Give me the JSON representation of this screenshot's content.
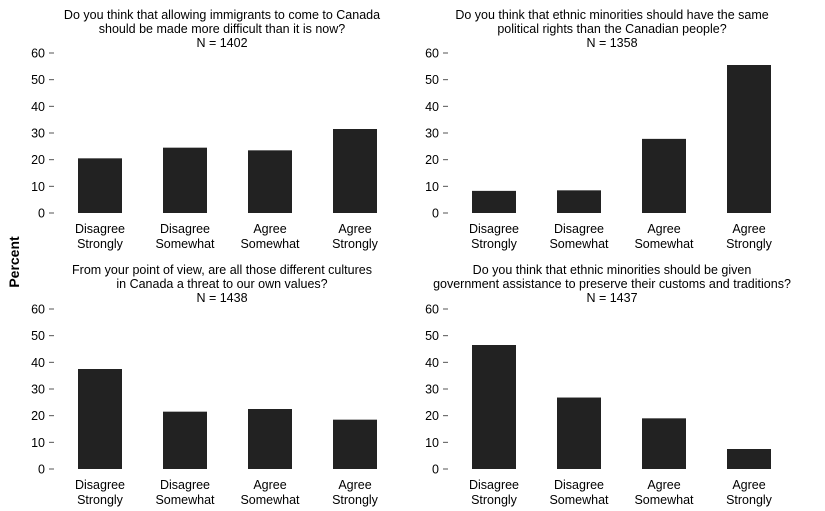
{
  "figure": {
    "ylabel": "Percent"
  },
  "chart_data": [
    {
      "type": "bar",
      "title": "Do you think that allowing immigrants to come to Canada",
      "title_line2": "should be made more difficult than it is now?",
      "subtitle": "N = 1402",
      "categories": [
        [
          "Disagree",
          "Strongly"
        ],
        [
          "Disagree",
          "Somewhat"
        ],
        [
          "Agree",
          "Somewhat"
        ],
        [
          "Agree",
          "Strongly"
        ]
      ],
      "values": [
        20.5,
        24.5,
        23.5,
        31.5
      ],
      "ylim": [
        0,
        60
      ],
      "yticks": [
        0,
        10,
        20,
        30,
        40,
        50,
        60
      ],
      "grid": false,
      "bar_color": "#222222"
    },
    {
      "type": "bar",
      "title": "Do you think that ethnic minorities should have the same",
      "title_line2": "political rights than the Canadian people?",
      "subtitle": "N = 1358",
      "categories": [
        [
          "Disagree",
          "Strongly"
        ],
        [
          "Disagree",
          "Somewhat"
        ],
        [
          "Agree",
          "Somewhat"
        ],
        [
          "Agree",
          "Strongly"
        ]
      ],
      "values": [
        8.3,
        8.5,
        27.8,
        55.5
      ],
      "ylim": [
        0,
        60
      ],
      "yticks": [
        0,
        10,
        20,
        30,
        40,
        50,
        60
      ],
      "grid": false,
      "bar_color": "#222222"
    },
    {
      "type": "bar",
      "title": "From your point of view, are all those different cultures",
      "title_line2": "in Canada a threat to our own values?",
      "subtitle": "N = 1438",
      "categories": [
        [
          "Disagree",
          "Strongly"
        ],
        [
          "Disagree",
          "Somewhat"
        ],
        [
          "Agree",
          "Somewhat"
        ],
        [
          "Agree",
          "Strongly"
        ]
      ],
      "values": [
        37.5,
        21.5,
        22.5,
        18.5
      ],
      "ylim": [
        0,
        60
      ],
      "yticks": [
        0,
        10,
        20,
        30,
        40,
        50,
        60
      ],
      "grid": false,
      "bar_color": "#222222"
    },
    {
      "type": "bar",
      "title": "Do you think that ethnic minorities should be given",
      "title_line2": "government assistance to preserve their customs and traditions?",
      "subtitle": "N = 1437",
      "categories": [
        [
          "Disagree",
          "Strongly"
        ],
        [
          "Disagree",
          "Somewhat"
        ],
        [
          "Agree",
          "Somewhat"
        ],
        [
          "Agree",
          "Strongly"
        ]
      ],
      "values": [
        46.5,
        26.8,
        19.0,
        7.5
      ],
      "ylim": [
        0,
        60
      ],
      "yticks": [
        0,
        10,
        20,
        30,
        40,
        50,
        60
      ],
      "grid": false,
      "bar_color": "#222222"
    }
  ]
}
